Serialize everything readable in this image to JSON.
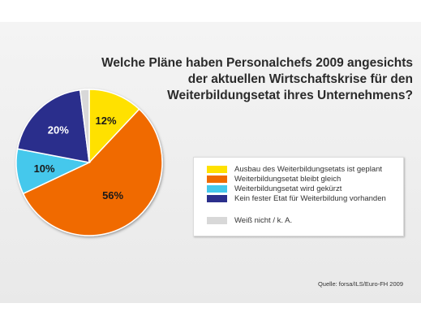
{
  "chart_data": {
    "type": "pie",
    "title": "Welche Pläne haben Personalchefs 2009 angesichts der aktuellen Wirtschaftskrise für den Weiterbildungsetat ihres Unternehmens?",
    "title_lines": [
      "Welche Pläne haben Personalchefs 2009 angesichts",
      "der aktuellen Wirtschaftskrise für den",
      "Weiterbildungsetat ihres Unternehmens?"
    ],
    "slices": [
      {
        "label": "Ausbau des Weiterbildungsetats ist geplant",
        "value": 12,
        "display": "12%",
        "color": "#ffe100"
      },
      {
        "label": "Weiterbildungsetat bleibt gleich",
        "value": 56,
        "display": "56%",
        "color": "#f06a00"
      },
      {
        "label": "Weiterbildungsetat wird gekürzt",
        "value": 10,
        "display": "10%",
        "color": "#44c8ec"
      },
      {
        "label": "Kein fester Etat für Weiterbildung vorhanden",
        "value": 20,
        "display": "20%",
        "color": "#2b2f8c"
      },
      {
        "label": "Weiß nicht / k. A.",
        "value": 2,
        "display": "",
        "color": "#d8d8d8"
      }
    ],
    "legend_placement": "right",
    "source": "Quelle: forsa/ILS/Euro-FH 2009"
  }
}
